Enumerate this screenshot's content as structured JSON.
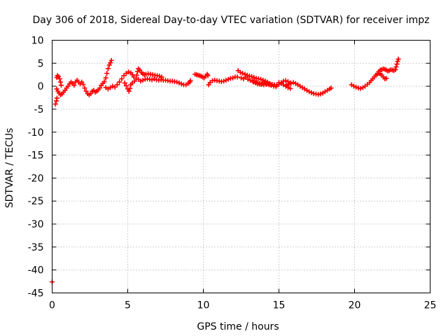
{
  "chart_data": {
    "type": "scatter",
    "title": "Day 306 of 2018, Sidereal Day-to-day VTEC variation (SDTVAR) for receiver impz",
    "xlabel": "GPS time / hours",
    "ylabel": "SDTVAR / TECUs",
    "xlim": [
      0,
      25
    ],
    "ylim": [
      -45,
      10
    ],
    "xticks": [
      0,
      5,
      10,
      15,
      20,
      25
    ],
    "yticks": [
      10,
      5,
      0,
      -5,
      -10,
      -15,
      -20,
      -25,
      -30,
      -35,
      -40,
      -45
    ],
    "grid": true,
    "marker": "+",
    "series_color": "#ff0000",
    "series": [
      {
        "name": "SDTVAR",
        "points": [
          [
            0.0,
            -42.6
          ],
          [
            0.22,
            -3.9
          ],
          [
            0.28,
            -3.2
          ],
          [
            0.32,
            -2.6
          ],
          [
            0.3,
            1.9
          ],
          [
            0.35,
            2.3
          ],
          [
            0.42,
            2.1
          ],
          [
            0.5,
            1.6
          ],
          [
            0.55,
            0.9
          ],
          [
            0.6,
            0.2
          ],
          [
            0.3,
            -0.6
          ],
          [
            0.38,
            -1.1
          ],
          [
            0.46,
            -1.5
          ],
          [
            0.55,
            -1.9
          ],
          [
            0.65,
            -1.7
          ],
          [
            0.75,
            -1.3
          ],
          [
            0.85,
            -0.9
          ],
          [
            0.95,
            -0.4
          ],
          [
            1.05,
            0.0
          ],
          [
            1.15,
            0.5
          ],
          [
            1.25,
            0.9
          ],
          [
            1.35,
            0.6
          ],
          [
            1.45,
            0.2
          ],
          [
            1.55,
            0.9
          ],
          [
            1.65,
            1.3
          ],
          [
            1.75,
            0.9
          ],
          [
            1.85,
            0.5
          ],
          [
            1.95,
            0.9
          ],
          [
            2.05,
            0.4
          ],
          [
            2.15,
            -0.4
          ],
          [
            2.25,
            -1.1
          ],
          [
            2.35,
            -1.6
          ],
          [
            2.45,
            -1.9
          ],
          [
            2.55,
            -1.6
          ],
          [
            2.65,
            -1.1
          ],
          [
            2.75,
            -0.9
          ],
          [
            2.85,
            -1.3
          ],
          [
            2.95,
            -1.1
          ],
          [
            3.05,
            -0.8
          ],
          [
            3.15,
            -0.4
          ],
          [
            3.25,
            0.2
          ],
          [
            3.35,
            0.6
          ],
          [
            3.45,
            1.0
          ],
          [
            3.55,
            1.8
          ],
          [
            3.62,
            2.8
          ],
          [
            3.7,
            3.8
          ],
          [
            3.78,
            4.6
          ],
          [
            3.85,
            5.1
          ],
          [
            3.92,
            5.6
          ],
          [
            3.55,
            -0.3
          ],
          [
            3.7,
            -0.6
          ],
          [
            3.85,
            -0.3
          ],
          [
            4.0,
            0.0
          ],
          [
            4.15,
            -0.2
          ],
          [
            4.3,
            0.3
          ],
          [
            4.45,
            0.9
          ],
          [
            4.6,
            1.6
          ],
          [
            4.75,
            2.3
          ],
          [
            4.9,
            2.8
          ],
          [
            5.05,
            3.1
          ],
          [
            5.2,
            2.9
          ],
          [
            5.3,
            2.5
          ],
          [
            5.4,
            2.0
          ],
          [
            4.8,
            0.7
          ],
          [
            4.9,
            0.1
          ],
          [
            5.0,
            -0.6
          ],
          [
            5.08,
            -1.1
          ],
          [
            5.15,
            -0.5
          ],
          [
            5.2,
            0.3
          ],
          [
            5.3,
            0.7
          ],
          [
            5.45,
            1.1
          ],
          [
            5.55,
            1.6
          ],
          [
            5.6,
            2.4
          ],
          [
            5.65,
            3.2
          ],
          [
            5.7,
            3.8
          ],
          [
            5.8,
            3.5
          ],
          [
            5.9,
            3.0
          ],
          [
            6.0,
            2.7
          ],
          [
            6.1,
            2.5
          ],
          [
            6.2,
            2.6
          ],
          [
            6.35,
            2.7
          ],
          [
            6.5,
            2.6
          ],
          [
            6.65,
            2.5
          ],
          [
            6.8,
            2.4
          ],
          [
            6.95,
            2.3
          ],
          [
            7.1,
            2.2
          ],
          [
            7.25,
            2.0
          ],
          [
            5.7,
            1.5
          ],
          [
            5.85,
            1.1
          ],
          [
            6.0,
            1.3
          ],
          [
            6.15,
            1.5
          ],
          [
            6.3,
            1.6
          ],
          [
            6.45,
            1.5
          ],
          [
            6.6,
            1.4
          ],
          [
            6.75,
            1.6
          ],
          [
            6.9,
            1.4
          ],
          [
            7.05,
            1.3
          ],
          [
            7.2,
            1.4
          ],
          [
            7.35,
            1.3
          ],
          [
            7.5,
            1.3
          ],
          [
            7.65,
            1.2
          ],
          [
            7.8,
            1.1
          ],
          [
            7.95,
            1.1
          ],
          [
            8.1,
            1.0
          ],
          [
            8.25,
            0.9
          ],
          [
            8.4,
            0.7
          ],
          [
            8.55,
            0.5
          ],
          [
            8.7,
            0.3
          ],
          [
            8.85,
            0.3
          ],
          [
            9.0,
            0.6
          ],
          [
            9.1,
            0.9
          ],
          [
            9.15,
            1.2
          ],
          [
            9.45,
            2.6
          ],
          [
            9.55,
            2.5
          ],
          [
            9.65,
            2.4
          ],
          [
            9.75,
            2.3
          ],
          [
            9.85,
            2.2
          ],
          [
            9.95,
            2.0
          ],
          [
            10.05,
            1.8
          ],
          [
            10.15,
            2.2
          ],
          [
            10.25,
            2.6
          ],
          [
            10.3,
            2.3
          ],
          [
            10.35,
            0.3
          ],
          [
            10.45,
            0.8
          ],
          [
            10.6,
            1.2
          ],
          [
            10.75,
            1.3
          ],
          [
            10.9,
            1.2
          ],
          [
            11.05,
            1.1
          ],
          [
            11.2,
            1.0
          ],
          [
            11.35,
            1.1
          ],
          [
            11.5,
            1.3
          ],
          [
            11.65,
            1.5
          ],
          [
            11.8,
            1.7
          ],
          [
            11.95,
            1.8
          ],
          [
            12.1,
            2.0
          ],
          [
            12.25,
            2.0
          ],
          [
            12.3,
            3.4
          ],
          [
            12.45,
            3.0
          ],
          [
            12.6,
            2.8
          ],
          [
            12.75,
            2.6
          ],
          [
            12.9,
            2.4
          ],
          [
            13.05,
            2.2
          ],
          [
            13.2,
            2.1
          ],
          [
            13.35,
            1.9
          ],
          [
            13.5,
            1.7
          ],
          [
            13.65,
            1.6
          ],
          [
            13.8,
            1.5
          ],
          [
            13.95,
            1.3
          ],
          [
            14.1,
            1.1
          ],
          [
            14.25,
            0.9
          ],
          [
            14.4,
            0.6
          ],
          [
            14.55,
            0.4
          ],
          [
            14.7,
            0.3
          ],
          [
            14.85,
            0.2
          ],
          [
            15.0,
            0.4
          ],
          [
            15.15,
            0.8
          ],
          [
            15.3,
            1.1
          ],
          [
            15.45,
            1.2
          ],
          [
            15.6,
            1.0
          ],
          [
            15.75,
            0.7
          ],
          [
            12.5,
            1.8
          ],
          [
            12.65,
            1.6
          ],
          [
            12.8,
            1.9
          ],
          [
            12.95,
            1.5
          ],
          [
            13.1,
            1.3
          ],
          [
            13.25,
            1.2
          ],
          [
            13.4,
            1.0
          ],
          [
            13.55,
            0.8
          ],
          [
            13.7,
            0.6
          ],
          [
            13.85,
            0.4
          ],
          [
            14.0,
            0.3
          ],
          [
            14.15,
            0.4
          ],
          [
            14.3,
            0.5
          ],
          [
            14.45,
            0.3
          ],
          [
            13.3,
            0.9
          ],
          [
            13.45,
            0.7
          ],
          [
            13.6,
            0.5
          ],
          [
            13.75,
            0.4
          ],
          [
            13.9,
            0.6
          ],
          [
            14.05,
            0.7
          ],
          [
            14.2,
            0.5
          ],
          [
            14.35,
            0.3
          ],
          [
            14.5,
            0.2
          ],
          [
            14.65,
            0.0
          ],
          [
            14.8,
            -0.1
          ],
          [
            15.0,
            0.8
          ],
          [
            15.15,
            0.6
          ],
          [
            15.3,
            0.3
          ],
          [
            15.45,
            0.0
          ],
          [
            15.6,
            -0.3
          ],
          [
            15.75,
            -0.5
          ],
          [
            15.5,
            0.2
          ],
          [
            15.65,
            0.4
          ],
          [
            15.8,
            0.6
          ],
          [
            15.95,
            0.8
          ],
          [
            16.1,
            0.6
          ],
          [
            16.25,
            0.3
          ],
          [
            16.4,
            0.0
          ],
          [
            16.55,
            -0.3
          ],
          [
            16.7,
            -0.6
          ],
          [
            16.85,
            -0.9
          ],
          [
            17.0,
            -1.2
          ],
          [
            17.15,
            -1.4
          ],
          [
            17.3,
            -1.6
          ],
          [
            17.45,
            -1.7
          ],
          [
            17.6,
            -1.8
          ],
          [
            17.75,
            -1.7
          ],
          [
            17.9,
            -1.5
          ],
          [
            18.05,
            -1.2
          ],
          [
            18.2,
            -0.9
          ],
          [
            18.35,
            -0.6
          ],
          [
            18.45,
            -0.4
          ],
          [
            19.8,
            0.3
          ],
          [
            19.95,
            0.0
          ],
          [
            20.1,
            -0.2
          ],
          [
            20.25,
            -0.4
          ],
          [
            20.4,
            -0.5
          ],
          [
            20.55,
            -0.3
          ],
          [
            20.7,
            0.0
          ],
          [
            20.85,
            0.4
          ],
          [
            21.0,
            0.8
          ],
          [
            21.1,
            1.2
          ],
          [
            21.2,
            1.6
          ],
          [
            21.3,
            2.0
          ],
          [
            21.4,
            2.4
          ],
          [
            21.5,
            2.6
          ],
          [
            21.6,
            2.8
          ],
          [
            21.7,
            2.7
          ],
          [
            21.8,
            2.4
          ],
          [
            21.9,
            2.0
          ],
          [
            22.0,
            1.6
          ],
          [
            22.1,
            1.7
          ],
          [
            21.6,
            3.2
          ],
          [
            21.7,
            3.5
          ],
          [
            21.8,
            3.6
          ],
          [
            21.9,
            3.8
          ],
          [
            22.0,
            3.7
          ],
          [
            22.1,
            3.5
          ],
          [
            22.2,
            3.3
          ],
          [
            22.3,
            3.4
          ],
          [
            22.4,
            3.6
          ],
          [
            22.5,
            3.5
          ],
          [
            22.6,
            3.4
          ],
          [
            22.7,
            3.6
          ],
          [
            22.75,
            4.2
          ],
          [
            22.8,
            4.8
          ],
          [
            22.85,
            5.4
          ],
          [
            22.9,
            5.9
          ]
        ]
      }
    ]
  }
}
